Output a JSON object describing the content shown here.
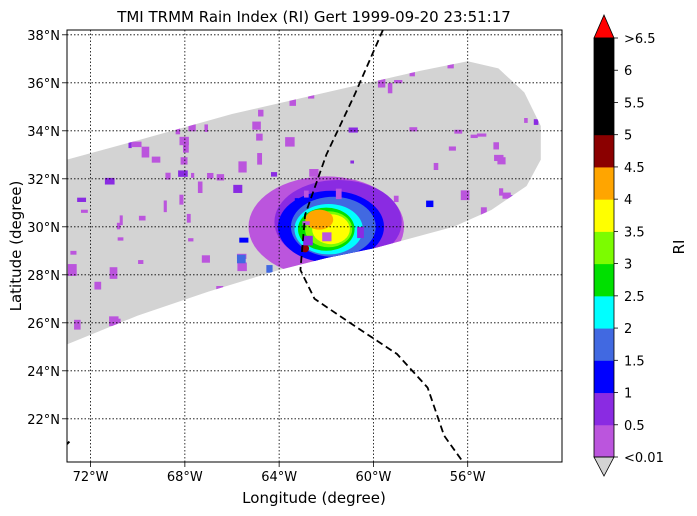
{
  "chart_data": {
    "type": "heatmap",
    "title": "TMI TRMM Rain Index (RI) Gert 1999-09-20 23:51:17",
    "xlabel": "Longitude (degree)",
    "ylabel": "Latitude (degree)",
    "colorbar_label": "RI",
    "xlim": [
      -73.0,
      -52.0
    ],
    "ylim": [
      20.2,
      38.2
    ],
    "x_ticks": [
      {
        "value": -72,
        "label": "72°W"
      },
      {
        "value": -68,
        "label": "68°W"
      },
      {
        "value": -64,
        "label": "64°W"
      },
      {
        "value": -60,
        "label": "60°W"
      },
      {
        "value": -56,
        "label": "56°W"
      }
    ],
    "y_ticks": [
      {
        "value": 22,
        "label": "22°N"
      },
      {
        "value": 24,
        "label": "24°N"
      },
      {
        "value": 26,
        "label": "26°N"
      },
      {
        "value": 28,
        "label": "28°N"
      },
      {
        "value": 30,
        "label": "30°N"
      },
      {
        "value": 32,
        "label": "32°N"
      },
      {
        "value": 34,
        "label": "34°N"
      },
      {
        "value": 36,
        "label": "36°N"
      },
      {
        "value": 38,
        "label": "38°N"
      }
    ],
    "grid": true,
    "colorbar": {
      "boundaries": [
        0.01,
        0.5,
        1,
        1.5,
        2,
        2.5,
        3,
        3.5,
        4,
        4.5,
        5,
        5.5,
        6,
        6.5
      ],
      "labels": [
        "<0.01",
        "0.5",
        "1",
        "1.5",
        "2",
        "2.5",
        "3",
        "3.5",
        "4",
        "4.5",
        "5",
        "5.5",
        "6",
        ">6.5"
      ],
      "colors": [
        "#bb55dd",
        "#8a2be2",
        "#0000ff",
        "#4169e1",
        "#00ffff",
        "#00e000",
        "#7cfc00",
        "#ffff00",
        "#ffa500",
        "#8b0000",
        "#000000",
        "#000000",
        "#000000"
      ],
      "under_color": "#d3d3d3",
      "over_color": "#ff0000"
    },
    "swath_color": "#d3d3d3",
    "storm_center": {
      "lon": -62.0,
      "lat": 29.8
    },
    "track": {
      "style": "dashed",
      "color": "#000000",
      "points": [
        {
          "lon": -59.6,
          "lat": 38.2
        },
        {
          "lon": -60.8,
          "lat": 35.5
        },
        {
          "lon": -62.0,
          "lat": 33.0
        },
        {
          "lon": -62.9,
          "lat": 30.5
        },
        {
          "lon": -63.1,
          "lat": 28.2
        },
        {
          "lon": -62.5,
          "lat": 27.0
        },
        {
          "lon": -61.0,
          "lat": 26.0
        },
        {
          "lon": -59.0,
          "lat": 24.7
        },
        {
          "lon": -57.7,
          "lat": 23.3
        },
        {
          "lon": -57.0,
          "lat": 21.3
        },
        {
          "lon": -56.2,
          "lat": 20.2
        }
      ]
    },
    "coastline": [
      {
        "lon": -72.9,
        "lat": 21.05
      },
      {
        "lon": -73.0,
        "lat": 20.95
      }
    ]
  }
}
